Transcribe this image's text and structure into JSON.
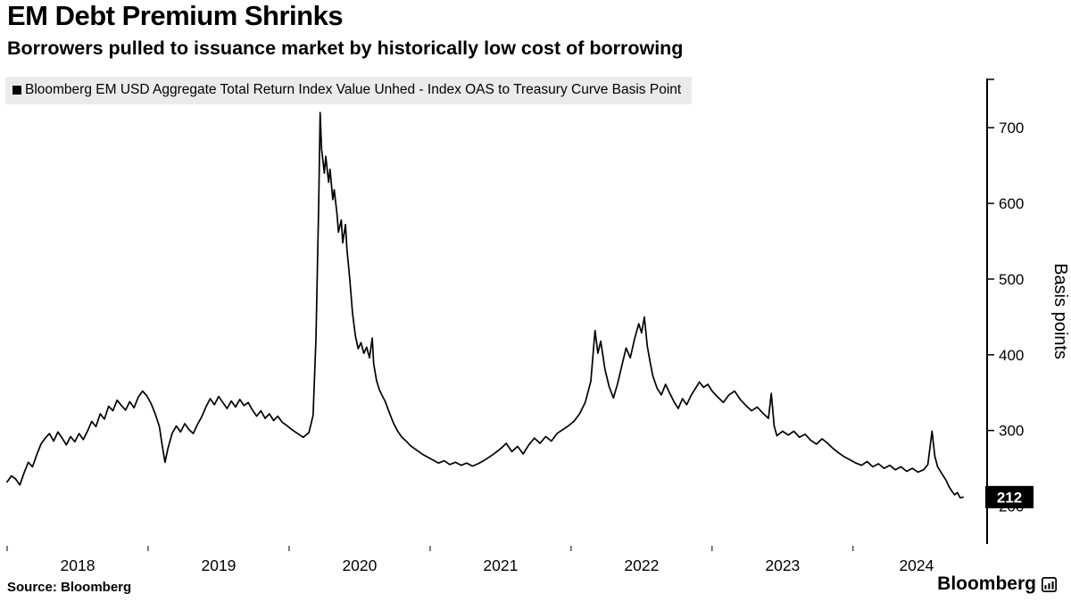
{
  "header": {
    "title": "EM Debt Premium Shrinks",
    "subtitle": "Borrowers pulled to issuance market by historically low cost of borrowing"
  },
  "legend": {
    "label": "Bloomberg EM USD Aggregate Total Return Index Value Unhed - Index OAS to Treasury Curve Basis Point"
  },
  "footer": {
    "source": "Source: Bloomberg",
    "brand": "Bloomberg"
  },
  "colors": {
    "line": "#000000",
    "legend_bg": "#ebebeb",
    "badge_bg": "#000000",
    "badge_text": "#ffffff",
    "axis": "#000000"
  },
  "chart_data": {
    "type": "line",
    "title": "EM Debt Premium Shrinks",
    "ylabel": "Basis points",
    "xlabel": "",
    "grid": false,
    "legend_position": "top-left",
    "x_domain": [
      2018.0,
      2024.9
    ],
    "y_domain": [
      150,
      765
    ],
    "y_ticks": [
      200,
      300,
      400,
      500,
      600,
      700
    ],
    "x_tick_years": [
      "2018",
      "2019",
      "2020",
      "2021",
      "2022",
      "2023",
      "2024"
    ],
    "last_value_label": "212",
    "series": [
      {
        "name": "Bloomberg EM USD Aggregate Total Return Index Value Unhed - Index OAS to Treasury Curve Basis Point",
        "color": "#000000",
        "points": [
          [
            2018.0,
            232
          ],
          [
            2018.03,
            240
          ],
          [
            2018.06,
            236
          ],
          [
            2018.09,
            228
          ],
          [
            2018.12,
            244
          ],
          [
            2018.15,
            258
          ],
          [
            2018.18,
            252
          ],
          [
            2018.21,
            268
          ],
          [
            2018.24,
            282
          ],
          [
            2018.27,
            290
          ],
          [
            2018.3,
            296
          ],
          [
            2018.33,
            286
          ],
          [
            2018.36,
            298
          ],
          [
            2018.39,
            290
          ],
          [
            2018.42,
            281
          ],
          [
            2018.45,
            292
          ],
          [
            2018.48,
            285
          ],
          [
            2018.51,
            296
          ],
          [
            2018.54,
            288
          ],
          [
            2018.57,
            299
          ],
          [
            2018.6,
            312
          ],
          [
            2018.63,
            305
          ],
          [
            2018.66,
            322
          ],
          [
            2018.69,
            315
          ],
          [
            2018.72,
            332
          ],
          [
            2018.75,
            326
          ],
          [
            2018.78,
            340
          ],
          [
            2018.81,
            333
          ],
          [
            2018.84,
            327
          ],
          [
            2018.87,
            338
          ],
          [
            2018.9,
            330
          ],
          [
            2018.93,
            344
          ],
          [
            2018.96,
            352
          ],
          [
            2018.99,
            346
          ],
          [
            2019.02,
            336
          ],
          [
            2019.05,
            322
          ],
          [
            2019.08,
            305
          ],
          [
            2019.1,
            280
          ],
          [
            2019.12,
            258
          ],
          [
            2019.14,
            276
          ],
          [
            2019.17,
            296
          ],
          [
            2019.2,
            306
          ],
          [
            2019.23,
            298
          ],
          [
            2019.26,
            309
          ],
          [
            2019.29,
            301
          ],
          [
            2019.32,
            296
          ],
          [
            2019.35,
            308
          ],
          [
            2019.38,
            318
          ],
          [
            2019.41,
            331
          ],
          [
            2019.44,
            342
          ],
          [
            2019.47,
            334
          ],
          [
            2019.5,
            345
          ],
          [
            2019.53,
            337
          ],
          [
            2019.56,
            329
          ],
          [
            2019.59,
            339
          ],
          [
            2019.62,
            331
          ],
          [
            2019.65,
            341
          ],
          [
            2019.68,
            333
          ],
          [
            2019.71,
            337
          ],
          [
            2019.74,
            327
          ],
          [
            2019.77,
            319
          ],
          [
            2019.8,
            326
          ],
          [
            2019.83,
            316
          ],
          [
            2019.86,
            322
          ],
          [
            2019.89,
            313
          ],
          [
            2019.92,
            319
          ],
          [
            2019.95,
            311
          ],
          [
            2019.98,
            307
          ],
          [
            2020.02,
            301
          ],
          [
            2020.06,
            296
          ],
          [
            2020.1,
            291
          ],
          [
            2020.14,
            297
          ],
          [
            2020.17,
            320
          ],
          [
            2020.19,
            420
          ],
          [
            2020.21,
            600
          ],
          [
            2020.22,
            720
          ],
          [
            2020.23,
            672
          ],
          [
            2020.25,
            640
          ],
          [
            2020.26,
            662
          ],
          [
            2020.28,
            628
          ],
          [
            2020.29,
            645
          ],
          [
            2020.31,
            605
          ],
          [
            2020.32,
            618
          ],
          [
            2020.34,
            585
          ],
          [
            2020.35,
            562
          ],
          [
            2020.37,
            578
          ],
          [
            2020.38,
            548
          ],
          [
            2020.4,
            572
          ],
          [
            2020.41,
            540
          ],
          [
            2020.43,
            500
          ],
          [
            2020.45,
            455
          ],
          [
            2020.47,
            425
          ],
          [
            2020.49,
            408
          ],
          [
            2020.51,
            416
          ],
          [
            2020.53,
            402
          ],
          [
            2020.55,
            410
          ],
          [
            2020.57,
            396
          ],
          [
            2020.59,
            422
          ],
          [
            2020.6,
            388
          ],
          [
            2020.62,
            366
          ],
          [
            2020.64,
            354
          ],
          [
            2020.66,
            346
          ],
          [
            2020.68,
            339
          ],
          [
            2020.71,
            324
          ],
          [
            2020.74,
            310
          ],
          [
            2020.77,
            299
          ],
          [
            2020.8,
            291
          ],
          [
            2020.83,
            286
          ],
          [
            2020.86,
            280
          ],
          [
            2020.89,
            276
          ],
          [
            2020.92,
            272
          ],
          [
            2020.95,
            268
          ],
          [
            2020.98,
            265
          ],
          [
            2021.02,
            261
          ],
          [
            2021.06,
            257
          ],
          [
            2021.1,
            260
          ],
          [
            2021.14,
            255
          ],
          [
            2021.18,
            258
          ],
          [
            2021.22,
            254
          ],
          [
            2021.26,
            257
          ],
          [
            2021.3,
            253
          ],
          [
            2021.34,
            256
          ],
          [
            2021.38,
            260
          ],
          [
            2021.42,
            265
          ],
          [
            2021.46,
            270
          ],
          [
            2021.5,
            276
          ],
          [
            2021.54,
            283
          ],
          [
            2021.58,
            272
          ],
          [
            2021.62,
            279
          ],
          [
            2021.66,
            269
          ],
          [
            2021.7,
            281
          ],
          [
            2021.74,
            290
          ],
          [
            2021.78,
            283
          ],
          [
            2021.82,
            292
          ],
          [
            2021.86,
            286
          ],
          [
            2021.9,
            296
          ],
          [
            2021.94,
            301
          ],
          [
            2021.98,
            306
          ],
          [
            2022.02,
            312
          ],
          [
            2022.06,
            322
          ],
          [
            2022.1,
            337
          ],
          [
            2022.14,
            365
          ],
          [
            2022.17,
            432
          ],
          [
            2022.19,
            402
          ],
          [
            2022.21,
            418
          ],
          [
            2022.24,
            381
          ],
          [
            2022.27,
            358
          ],
          [
            2022.3,
            343
          ],
          [
            2022.33,
            362
          ],
          [
            2022.36,
            386
          ],
          [
            2022.39,
            409
          ],
          [
            2022.42,
            396
          ],
          [
            2022.45,
            421
          ],
          [
            2022.48,
            441
          ],
          [
            2022.5,
            429
          ],
          [
            2022.52,
            450
          ],
          [
            2022.54,
            412
          ],
          [
            2022.56,
            391
          ],
          [
            2022.58,
            372
          ],
          [
            2022.61,
            356
          ],
          [
            2022.64,
            347
          ],
          [
            2022.67,
            361
          ],
          [
            2022.7,
            349
          ],
          [
            2022.73,
            338
          ],
          [
            2022.76,
            329
          ],
          [
            2022.79,
            342
          ],
          [
            2022.82,
            334
          ],
          [
            2022.85,
            346
          ],
          [
            2022.88,
            355
          ],
          [
            2022.91,
            364
          ],
          [
            2022.94,
            357
          ],
          [
            2022.97,
            361
          ],
          [
            2023.0,
            352
          ],
          [
            2023.04,
            344
          ],
          [
            2023.08,
            337
          ],
          [
            2023.12,
            347
          ],
          [
            2023.16,
            352
          ],
          [
            2023.2,
            341
          ],
          [
            2023.24,
            333
          ],
          [
            2023.28,
            326
          ],
          [
            2023.32,
            331
          ],
          [
            2023.36,
            323
          ],
          [
            2023.4,
            316
          ],
          [
            2023.42,
            349
          ],
          [
            2023.44,
            306
          ],
          [
            2023.46,
            293
          ],
          [
            2023.5,
            299
          ],
          [
            2023.54,
            294
          ],
          [
            2023.58,
            299
          ],
          [
            2023.62,
            291
          ],
          [
            2023.66,
            295
          ],
          [
            2023.7,
            287
          ],
          [
            2023.74,
            282
          ],
          [
            2023.78,
            289
          ],
          [
            2023.82,
            283
          ],
          [
            2023.86,
            276
          ],
          [
            2023.9,
            270
          ],
          [
            2023.94,
            265
          ],
          [
            2023.98,
            261
          ],
          [
            2024.02,
            257
          ],
          [
            2024.06,
            254
          ],
          [
            2024.1,
            259
          ],
          [
            2024.14,
            252
          ],
          [
            2024.18,
            256
          ],
          [
            2024.22,
            250
          ],
          [
            2024.26,
            254
          ],
          [
            2024.3,
            248
          ],
          [
            2024.34,
            252
          ],
          [
            2024.38,
            246
          ],
          [
            2024.42,
            250
          ],
          [
            2024.46,
            245
          ],
          [
            2024.5,
            248
          ],
          [
            2024.53,
            255
          ],
          [
            2024.56,
            299
          ],
          [
            2024.58,
            266
          ],
          [
            2024.6,
            252
          ],
          [
            2024.63,
            243
          ],
          [
            2024.66,
            234
          ],
          [
            2024.68,
            226
          ],
          [
            2024.7,
            220
          ],
          [
            2024.72,
            215
          ],
          [
            2024.74,
            218
          ],
          [
            2024.76,
            211
          ],
          [
            2024.78,
            212
          ]
        ]
      }
    ]
  }
}
